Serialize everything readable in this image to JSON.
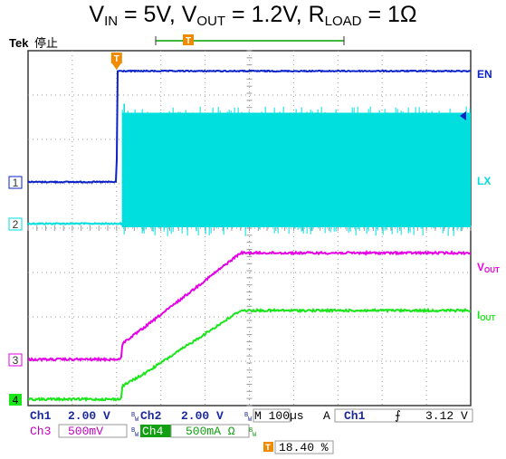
{
  "title": {
    "parts": [
      {
        "t": "V"
      },
      {
        "sub": "IN"
      },
      {
        "t": " = 5V, V"
      },
      {
        "sub": "OUT"
      },
      {
        "t": " = 1.2V, R"
      },
      {
        "sub": "LOAD"
      },
      {
        "t": " = 1Ω"
      }
    ]
  },
  "header": {
    "brand": "Tek",
    "status": "停止"
  },
  "colors": {
    "ch1": "#0a22c8",
    "ch2": "#00dede",
    "ch3": "#e600e6",
    "ch4": "#19e619",
    "trigger": "#f08a00",
    "grid": "#9a9a9a",
    "frame": "#3a3a3a",
    "panel_text": "#1a2a9a"
  },
  "chart_data": {
    "type": "line",
    "x_unit": "µs",
    "time_per_div_us": 100,
    "x_range_us": [
      -200,
      800
    ],
    "trigger_time_us": 0,
    "series": [
      {
        "name": "EN",
        "channel": 1,
        "volts_per_div": 2.0,
        "points_us_V": [
          [
            -200,
            0
          ],
          [
            0,
            0
          ],
          [
            2,
            5.0
          ],
          [
            800,
            5.0
          ]
        ]
      },
      {
        "name": "LX",
        "channel": 2,
        "volts_per_div": 2.0,
        "switching_start_us": 13,
        "envelope_V": {
          "low": 0,
          "high": 5.0,
          "spike_high": 5.6
        }
      },
      {
        "name": "V_OUT",
        "channel": 3,
        "volts_per_div": 0.5,
        "points_us_V": [
          [
            -200,
            0
          ],
          [
            10,
            0
          ],
          [
            13,
            0.18
          ],
          [
            60,
            0.35
          ],
          [
            280,
            1.2
          ],
          [
            800,
            1.2
          ]
        ]
      },
      {
        "name": "I_OUT",
        "channel": 4,
        "amps_per_div": 0.5,
        "points_us_A": [
          [
            -200,
            0
          ],
          [
            10,
            0
          ],
          [
            13,
            0.15
          ],
          [
            60,
            0.28
          ],
          [
            280,
            1.0
          ],
          [
            800,
            1.0
          ]
        ]
      }
    ],
    "trace_labels": [
      {
        "text": "EN",
        "ch": "ch1"
      },
      {
        "text": "LX",
        "ch": "ch2"
      },
      {
        "main": "V",
        "sub": "OUT",
        "ch": "ch3"
      },
      {
        "main": "I",
        "sub": "OUT",
        "ch": "ch4"
      }
    ],
    "channel_markers": [
      "1",
      "2",
      "3",
      "4"
    ],
    "trigger_marker": "T"
  },
  "readout": {
    "row1": {
      "ch1_label": "Ch1",
      "ch1_val": "2.00 V",
      "ch2_label": "Ch2",
      "ch2_val": "2.00 V",
      "timebase": "M 100µs",
      "acq": "A",
      "trig_src": "Ch1",
      "trig_slope": "⨍",
      "trig_level": "3.12 V"
    },
    "row2": {
      "ch3_label": "Ch3",
      "ch3_val": "500mV",
      "ch4_label": "Ch4",
      "ch4_val": "500mA Ω",
      "bw_mark": "B",
      "bw_sub": "W"
    },
    "trigger_position": "18.40 %"
  }
}
